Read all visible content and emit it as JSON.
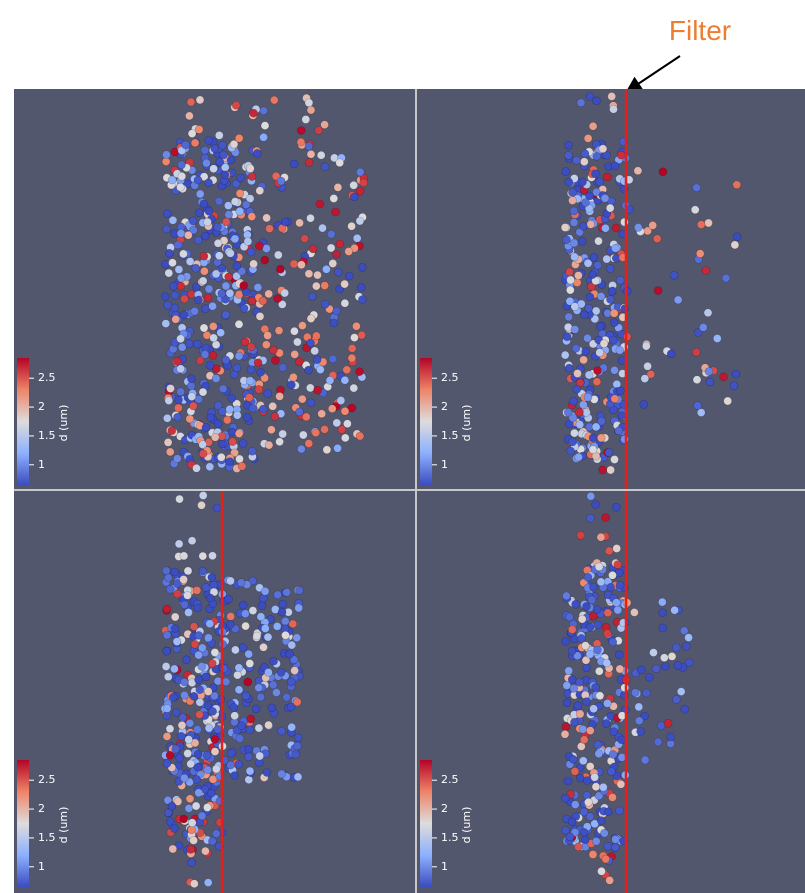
{
  "annotation": "Filter",
  "panels": [
    {
      "colorbar": {
        "title": "d (um)",
        "range": [
          0.65,
          2.85
        ],
        "ticks": [
          2.5,
          2,
          1.5,
          1
        ]
      }
    },
    {
      "colorbar": {
        "title": "d (um)",
        "range": [
          0.65,
          2.85
        ],
        "ticks": [
          2.5,
          2,
          1.5,
          1
        ]
      }
    },
    {
      "colorbar": {
        "title": "d (um)",
        "range": [
          0.65,
          2.85
        ],
        "ticks": [
          2.5,
          2,
          1.5,
          1
        ]
      }
    },
    {
      "colorbar": {
        "title": "d (um)",
        "range": [
          0.65,
          2.85
        ],
        "ticks": [
          2.5,
          2,
          1.5,
          1
        ]
      }
    }
  ]
}
